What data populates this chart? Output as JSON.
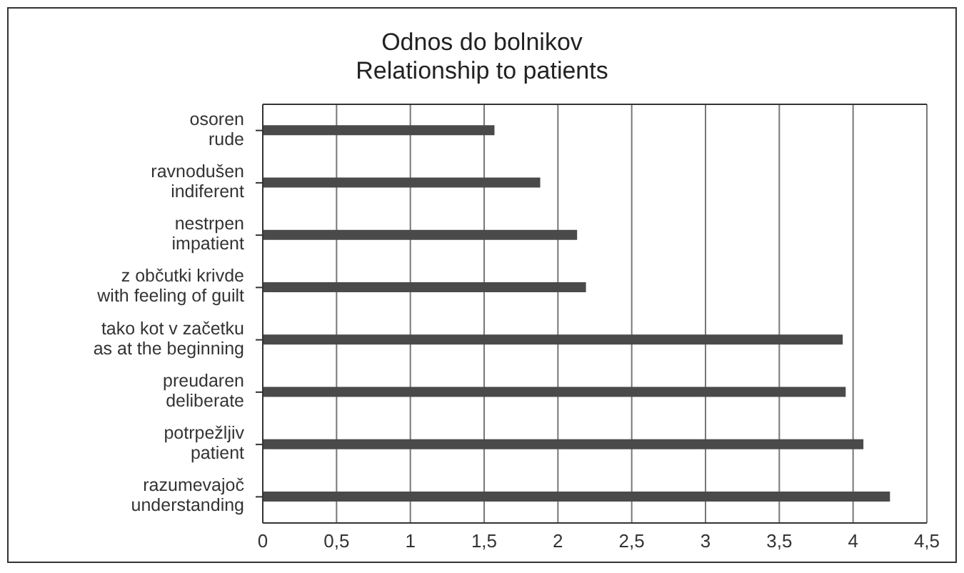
{
  "chart_data": {
    "type": "bar",
    "orientation": "horizontal",
    "title": "Odnos do bolnikov\nRelationship to patients",
    "categories": [
      "osoren\nrude",
      "ravnodušen\nindiferent",
      "nestrpen\nimpatient",
      "z občutki krivde\nwith feeling of guilt",
      "tako kot v začetku\nas at the beginning",
      "preudaren\ndeliberate",
      "potrpežljiv\npatient",
      "razumevajoč\nunderstanding"
    ],
    "values": [
      1.57,
      1.88,
      2.13,
      2.19,
      3.93,
      3.95,
      4.07,
      4.25
    ],
    "color": "#4a4a4a",
    "xlim": [
      0,
      4.5
    ],
    "xticks": [
      0,
      {
        "value": 0.5,
        "label": "0,5"
      },
      1,
      {
        "value": 1.5,
        "label": "1,5"
      },
      2,
      {
        "value": 2.5,
        "label": "2,5"
      },
      3,
      {
        "value": 3.5,
        "label": "3,5"
      },
      4,
      {
        "value": 4.5,
        "label": "4,5"
      }
    ],
    "grid": "x"
  }
}
